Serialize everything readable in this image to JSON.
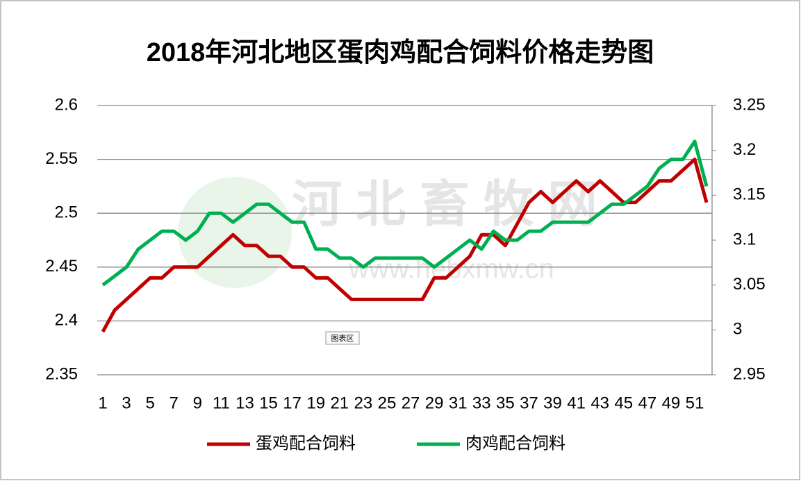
{
  "chart_data": {
    "type": "line",
    "title": "2018年河北地区蛋肉鸡配合饲料价格走势图",
    "watermark": "河北畜牧网",
    "watermark_url": "www.hebxmw.cn",
    "chart_area_label": "图表区",
    "categories": [
      1,
      null,
      3,
      null,
      5,
      null,
      7,
      null,
      9,
      null,
      11,
      null,
      13,
      null,
      15,
      null,
      17,
      null,
      19,
      null,
      21,
      null,
      23,
      null,
      25,
      null,
      27,
      null,
      29,
      null,
      31,
      null,
      33,
      null,
      35,
      null,
      37,
      null,
      39,
      null,
      41,
      null,
      43,
      null,
      45,
      null,
      47,
      null,
      49,
      null,
      51,
      null
    ],
    "ylim": [
      2.35,
      2.6
    ],
    "yticks": [
      2.35,
      2.4,
      2.45,
      2.5,
      2.55,
      2.6
    ],
    "y2lim": [
      2.95,
      3.25
    ],
    "y2ticks": [
      2.95,
      3,
      3.05,
      3.1,
      3.15,
      3.2,
      3.25
    ],
    "grid": true,
    "legend": "bottom",
    "series": [
      {
        "name": "蛋鸡配合饲料",
        "color": "#c00000",
        "values": [
          2.39,
          2.41,
          2.42,
          2.43,
          2.44,
          2.44,
          2.45,
          2.45,
          2.45,
          2.46,
          2.47,
          2.48,
          2.47,
          2.47,
          2.46,
          2.46,
          2.45,
          2.45,
          2.44,
          2.44,
          2.43,
          2.42,
          2.42,
          2.42,
          2.42,
          2.42,
          2.42,
          2.42,
          2.44,
          2.44,
          2.45,
          2.46,
          2.48,
          2.48,
          2.47,
          2.49,
          2.51,
          2.52,
          2.51,
          2.52,
          2.53,
          2.52,
          2.53,
          2.52,
          2.51,
          2.51,
          2.52,
          2.53,
          2.53,
          2.54,
          2.55,
          2.51
        ]
      },
      {
        "name": "肉鸡配合饲料",
        "color": "#00b050",
        "axis": "y2",
        "values": [
          3.05,
          3.06,
          3.07,
          3.09,
          3.1,
          3.11,
          3.11,
          3.1,
          3.11,
          3.13,
          3.13,
          3.12,
          3.13,
          3.14,
          3.14,
          3.13,
          3.12,
          3.12,
          3.09,
          3.09,
          3.08,
          3.08,
          3.07,
          3.08,
          3.08,
          3.08,
          3.08,
          3.08,
          3.07,
          3.08,
          3.09,
          3.1,
          3.09,
          3.11,
          3.1,
          3.1,
          3.11,
          3.11,
          3.12,
          3.12,
          3.12,
          3.12,
          3.13,
          3.14,
          3.14,
          3.15,
          3.16,
          3.18,
          3.19,
          3.19,
          3.21,
          3.16
        ]
      }
    ]
  }
}
